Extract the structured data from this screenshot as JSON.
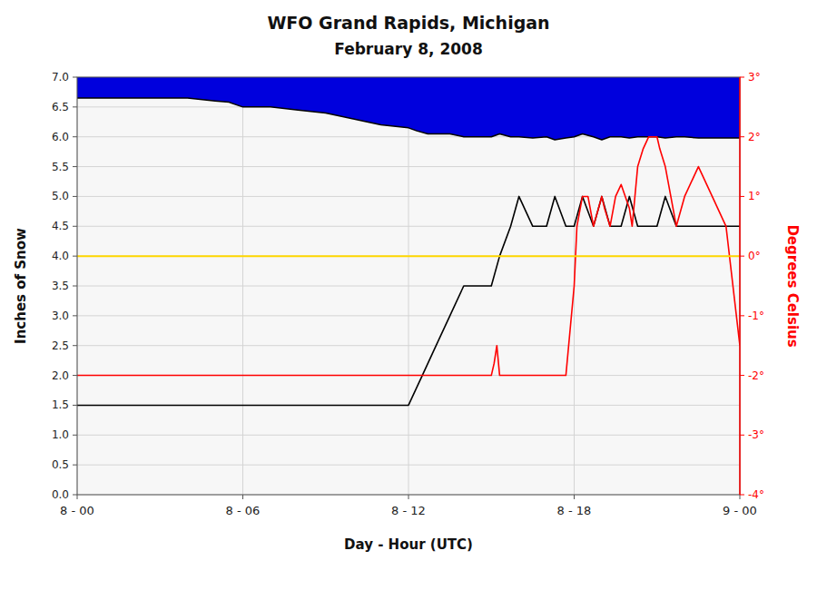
{
  "chart_data": {
    "type": "line",
    "title": "WFO Grand Rapids, Michigan",
    "subtitle": "February 8, 2008",
    "xlabel": "Day - Hour (UTC)",
    "ylabel": "Inches of Snow",
    "y2label": "Degrees Celsius",
    "grid": true,
    "xlim": [
      0,
      24
    ],
    "xticks": [
      {
        "value": 0,
        "label": "8 - 00"
      },
      {
        "value": 6,
        "label": "8 - 06"
      },
      {
        "value": 12,
        "label": "8 - 12"
      },
      {
        "value": 18,
        "label": "8 - 18"
      },
      {
        "value": 24,
        "label": "9 - 00"
      }
    ],
    "ylim": [
      0.0,
      7.0
    ],
    "yticks": [
      {
        "value": 0.0,
        "label": "0.0"
      },
      {
        "value": 0.5,
        "label": "0.5"
      },
      {
        "value": 1.0,
        "label": "1.0"
      },
      {
        "value": 1.5,
        "label": "1.5"
      },
      {
        "value": 2.0,
        "label": "2.0"
      },
      {
        "value": 2.5,
        "label": "2.5"
      },
      {
        "value": 3.0,
        "label": "3.0"
      },
      {
        "value": 3.5,
        "label": "3.5"
      },
      {
        "value": 4.0,
        "label": "4.0"
      },
      {
        "value": 4.5,
        "label": "4.5"
      },
      {
        "value": 5.0,
        "label": "5.0"
      },
      {
        "value": 5.5,
        "label": "5.5"
      },
      {
        "value": 6.0,
        "label": "6.0"
      },
      {
        "value": 6.5,
        "label": "6.5"
      },
      {
        "value": 7.0,
        "label": "7.0"
      }
    ],
    "y2lim": [
      -4.0,
      3.0
    ],
    "y2ticks": [
      {
        "value": -4,
        "label": "-4°"
      },
      {
        "value": -3,
        "label": "-3°"
      },
      {
        "value": -2,
        "label": "-2°"
      },
      {
        "value": -1,
        "label": "-1°"
      },
      {
        "value": 0,
        "label": "0°"
      },
      {
        "value": 1,
        "label": "1°"
      },
      {
        "value": 2,
        "label": "2°"
      },
      {
        "value": 3,
        "label": "3°"
      }
    ],
    "series": [
      {
        "type": "area",
        "color": "#0000DD",
        "x": [
          0,
          1,
          2,
          3,
          4,
          5,
          5.5,
          6,
          6.5,
          7,
          8,
          9,
          10,
          11,
          12,
          12.3,
          12.7,
          13,
          13.5,
          14,
          14.5,
          15,
          15.3,
          15.7,
          16,
          16.5,
          17,
          17.3,
          17.7,
          18,
          18.3,
          18.7,
          19,
          19.3,
          19.7,
          20,
          20.3,
          20.7,
          21,
          21.3,
          21.7,
          22,
          22.5,
          23,
          23.5,
          24
        ],
        "values": [
          6.65,
          6.65,
          6.65,
          6.65,
          6.65,
          6.6,
          6.58,
          6.5,
          6.5,
          6.5,
          6.45,
          6.4,
          6.3,
          6.2,
          6.15,
          6.1,
          6.05,
          6.05,
          6.05,
          6.0,
          6.0,
          6.0,
          6.05,
          6.0,
          6.0,
          5.98,
          6.0,
          5.95,
          5.98,
          6.0,
          6.05,
          6.0,
          5.95,
          6.0,
          6.0,
          5.98,
          6.0,
          6.0,
          6.0,
          5.98,
          6.0,
          6.0,
          5.98,
          5.98,
          5.98,
          5.98
        ]
      },
      {
        "type": "line",
        "color": "#000000",
        "x": [
          0,
          1,
          1,
          4.8,
          4.8,
          5.3,
          5.3,
          5.6,
          5.6,
          7,
          7,
          12,
          12,
          12.5,
          12.5,
          13,
          13,
          13.5,
          13.5,
          14,
          14,
          14.5,
          14.5,
          15,
          15,
          15.3,
          15.3,
          15.7,
          15.7,
          16,
          16,
          16.5,
          16.5,
          17,
          17,
          17.3,
          17.3,
          17.7,
          17.7,
          18,
          18,
          18.3,
          18.3,
          18.7,
          18.7,
          19,
          19,
          19.3,
          19.3,
          19.7,
          19.7,
          20,
          20,
          20.3,
          20.3,
          20.7,
          20.7,
          21,
          21,
          21.3,
          21.3,
          21.7,
          21.7,
          22,
          22,
          23,
          23,
          24
        ],
        "values": [
          1.5,
          1.5,
          1.5,
          1.5,
          1.5,
          1.5,
          1.5,
          1.5,
          1.5,
          1.5,
          1.5,
          1.5,
          1.5,
          2.0,
          2.0,
          2.5,
          2.5,
          3.0,
          3.0,
          3.5,
          3.5,
          3.5,
          3.5,
          3.5,
          3.5,
          4.0,
          4.0,
          4.5,
          4.5,
          5.0,
          5.0,
          4.5,
          4.5,
          4.5,
          4.5,
          5.0,
          5.0,
          4.5,
          4.5,
          4.5,
          4.5,
          5.0,
          5.0,
          4.5,
          4.5,
          5.0,
          5.0,
          4.5,
          4.5,
          4.5,
          4.5,
          5.0,
          5.0,
          4.5,
          4.5,
          4.5,
          4.5,
          4.5,
          4.5,
          5.0,
          5.0,
          4.5,
          4.5,
          4.5,
          4.5,
          4.5,
          4.5,
          4.5
        ]
      },
      {
        "type": "line",
        "color": "#FF0000",
        "axis": "y2",
        "x": [
          0,
          0.5,
          1,
          1.5,
          2,
          2.5,
          3,
          3.5,
          4,
          4.5,
          5,
          5.1,
          5.3,
          5.5,
          5.7,
          6,
          6.5,
          7,
          7.5,
          8,
          8.5,
          9,
          9.5,
          10,
          10.5,
          11,
          11.5,
          12,
          12.3,
          12.7,
          13,
          13.3,
          13.7,
          14,
          14.3,
          14.7,
          15,
          15.1,
          15.2,
          15.3,
          15.5,
          15.7,
          16,
          16.3,
          16.7,
          17,
          17.1,
          17.3,
          17.5,
          17.7,
          18,
          18.1,
          18.3,
          18.5,
          18.7,
          19,
          19.1,
          19.3,
          19.5,
          19.7,
          20,
          20.1,
          20.3,
          20.5,
          20.7,
          21,
          21.1,
          21.3,
          21.5,
          21.7,
          22,
          22.5,
          23,
          23.5,
          24
        ],
        "values": [
          -2,
          -2,
          -2,
          -2,
          -2,
          -2,
          -2,
          -2,
          -2,
          -2,
          -2,
          -2,
          -2,
          -2,
          -2,
          -2,
          -2,
          -2,
          -2,
          -2,
          -2,
          -2,
          -2,
          -2,
          -2,
          -2,
          -2,
          -2,
          -2,
          -2,
          -2,
          -2,
          -2,
          -2,
          -2,
          -2,
          -2,
          -1.8,
          -1.5,
          -2,
          -2,
          -2,
          -2,
          -2,
          -2,
          -2,
          -2,
          -2,
          -2,
          -2,
          -0.5,
          0.5,
          1.0,
          1.0,
          0.5,
          1.0,
          0.8,
          0.5,
          1.0,
          1.2,
          0.8,
          0.5,
          1.5,
          1.8,
          2.0,
          2.0,
          1.8,
          1.5,
          1.0,
          0.5,
          1.0,
          1.5,
          1.0,
          0.5,
          -1.5
        ]
      },
      {
        "type": "hline",
        "color": "#FFD700",
        "values": [
          4.0
        ]
      }
    ]
  }
}
